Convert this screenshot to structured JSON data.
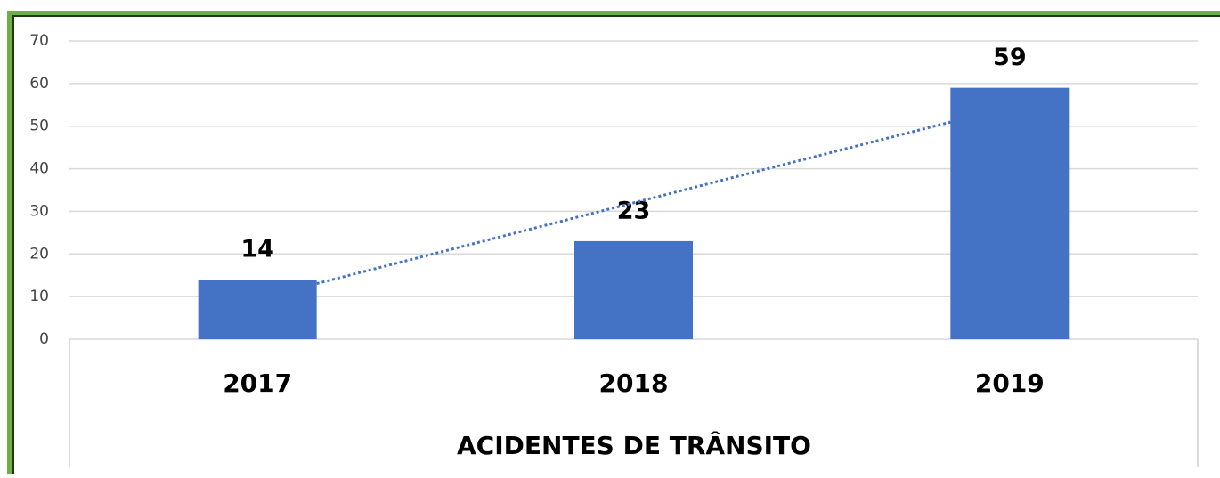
{
  "chart_data": {
    "type": "bar",
    "title": "ACIDENTES DE TRÂNSITO",
    "categories": [
      "2017",
      "2018",
      "2019"
    ],
    "values": [
      14,
      23,
      59
    ],
    "color": "#4472c4",
    "ylim": [
      0,
      70
    ],
    "yticks": [
      0,
      10,
      20,
      30,
      40,
      50,
      60,
      70
    ],
    "grid": true,
    "trendline": "linear"
  }
}
